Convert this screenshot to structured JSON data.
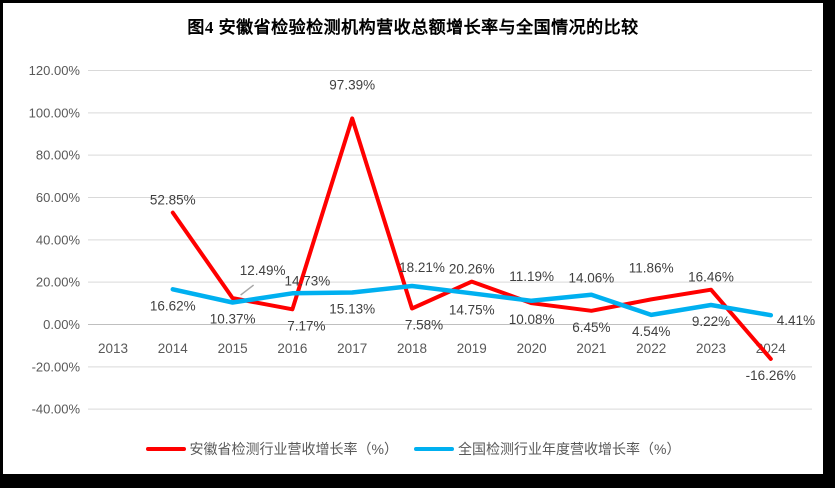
{
  "title": "图4 安徽省检验检测机构营收总额增长率与全国情况的比较",
  "colors": {
    "anhui_series": "#FF0000",
    "national_series": "#00B0F0",
    "gridline": "#D9D9D9",
    "zero_axis_line": "#BFBFBF",
    "tick_label": "#595959",
    "data_label": "#404040",
    "leader_line": "#A6A6A6",
    "frame_border": "#000000"
  },
  "chart_data": {
    "type": "line",
    "title": "图4 安徽省检验检测机构营收总额增长率与全国情况的比较",
    "categories": [
      "2013",
      "2014",
      "2015",
      "2016",
      "2017",
      "2018",
      "2019",
      "2020",
      "2021",
      "2022",
      "2023",
      "2024"
    ],
    "y_axis": {
      "tick_labels": [
        "120.00%",
        "100.00%",
        "80.00%",
        "60.00%",
        "40.00%",
        "20.00%",
        "0.00%",
        "-20.00%",
        "-40.00%"
      ],
      "tick_values": [
        120,
        100,
        80,
        60,
        40,
        20,
        0,
        -20,
        -40
      ],
      "min": -40,
      "max": 120,
      "grid": true
    },
    "series": [
      {
        "name": "安徽省检测行业营收增长率（%）",
        "color": "#FF0000",
        "values": [
          null,
          52.85,
          12.49,
          7.17,
          97.39,
          7.58,
          20.26,
          10.08,
          6.45,
          11.86,
          16.46,
          -16.26
        ],
        "labels": [
          null,
          "52.85%",
          "12.49%",
          "7.17%",
          "97.39%",
          "7.58%",
          "20.26%",
          "10.08%",
          "6.45%",
          "11.86%",
          "16.46%",
          "-16.26%"
        ],
        "label_placement": [
          null,
          "above",
          "leader",
          "below",
          "above",
          "below",
          "above",
          "below",
          "below",
          "above",
          "above",
          "below"
        ]
      },
      {
        "name": "全国检测行业年度营收增长率（%）",
        "color": "#00B0F0",
        "values": [
          null,
          16.62,
          10.37,
          14.73,
          15.13,
          18.21,
          14.75,
          11.19,
          14.06,
          4.54,
          9.22,
          4.41
        ],
        "labels": [
          null,
          "16.62%",
          "10.37%",
          "14.73%",
          "15.13%",
          "18.21%",
          "14.75%",
          "11.19%",
          "14.06%",
          "4.54%",
          "9.22%",
          "4.41%"
        ],
        "label_placement": [
          null,
          "below",
          "below",
          "above",
          "below",
          "above",
          "below",
          "above",
          "above",
          "below",
          "below",
          "right"
        ]
      }
    ],
    "legend_position": "bottom"
  },
  "legend": {
    "items": [
      {
        "label": "安徽省检测行业营收增长率（%）",
        "color": "#FF0000"
      },
      {
        "label": "全国检测行业年度营收增长率（%）",
        "color": "#00B0F0"
      }
    ]
  }
}
